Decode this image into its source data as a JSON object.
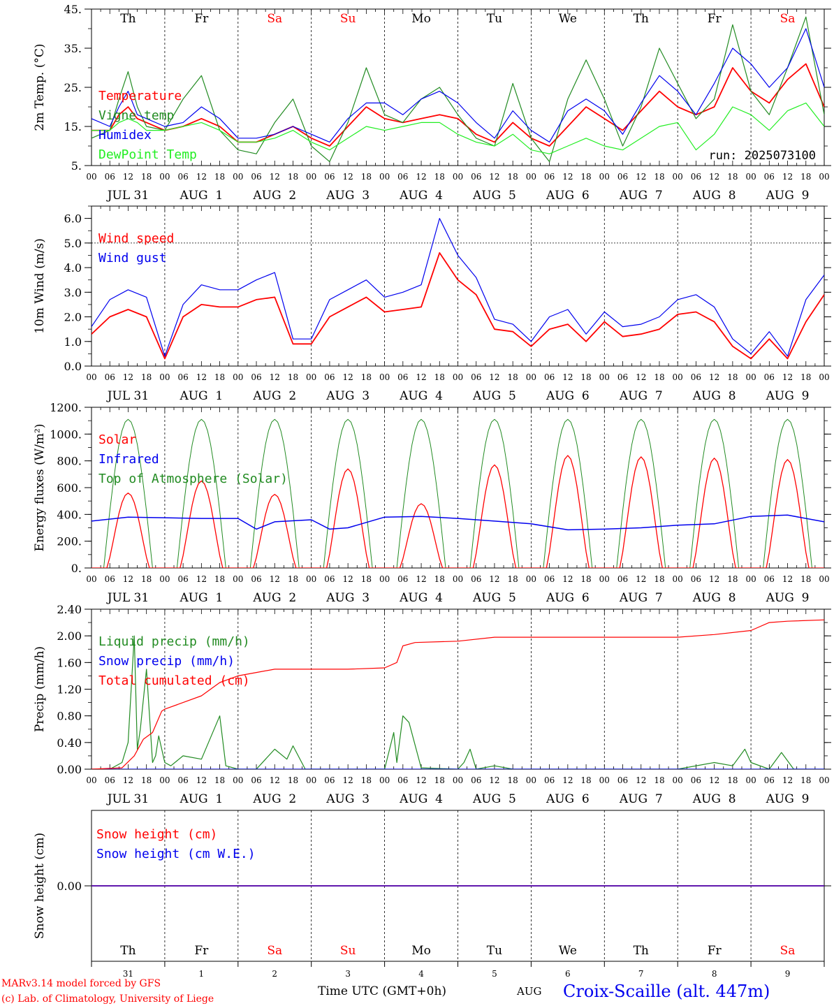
{
  "colors": {
    "red": "#ff0000",
    "green": "#228b22",
    "blue": "#0000ee",
    "lightgreen": "#22ee22",
    "black": "#000000"
  },
  "run_label": "run: 2025073100",
  "day_names": [
    "Th",
    "Fr",
    "Sa",
    "Su",
    "Mo",
    "Tu",
    "We",
    "Th",
    "Fr",
    "Sa"
  ],
  "weekend_days": [
    2,
    3,
    9
  ],
  "day_dates": [
    "JUL 31",
    "AUG  1",
    "AUG  2",
    "AUG  3",
    "AUG  4",
    "AUG  5",
    "AUG  6",
    "AUG  7",
    "AUG  8",
    "AUG  9"
  ],
  "bottom_day_numbers": [
    "31",
    "1",
    "2",
    "3",
    "4",
    "5",
    "6",
    "7",
    "8",
    "9"
  ],
  "hour_ticks": [
    "00",
    "06",
    "12",
    "18"
  ],
  "footer": {
    "model": "MARv3.14 model forced by GFS",
    "lab": "(c) Lab. of Climatology, University of Liege",
    "time_label": "Time UTC (GMT+0h)",
    "month": "AUG",
    "station": "Croix-Scaille (alt. 447m)"
  },
  "chart_data": [
    {
      "type": "line",
      "ylabel": "2m Temp. (°C)",
      "ylim": [
        5,
        45
      ],
      "yticks": [
        "5.",
        "15.",
        "25.",
        "35.",
        "45."
      ],
      "ytick_values": [
        5,
        15,
        25,
        35,
        45
      ],
      "legend": [
        {
          "label": "Temperature",
          "color": "red"
        },
        {
          "label": "Vigne temp",
          "color": "green"
        },
        {
          "label": "Humidex",
          "color": "blue"
        },
        {
          "label": "DewPoint Temp",
          "color": "lightgreen"
        }
      ],
      "x_hours": [
        0,
        6,
        9,
        12,
        15,
        18,
        24,
        30,
        36,
        42,
        48,
        54,
        60,
        66,
        72,
        78,
        84,
        90,
        96,
        102,
        108,
        114,
        120,
        126,
        132,
        138,
        144,
        150,
        156,
        162,
        168,
        174,
        180,
        186,
        192,
        198,
        204,
        210,
        216,
        222,
        228,
        234,
        240
      ],
      "series": [
        {
          "name": "Temperature",
          "color": "red",
          "values": [
            14,
            14,
            18,
            20,
            17,
            16,
            14,
            15,
            17,
            15,
            11,
            11,
            13,
            15,
            12,
            10,
            15,
            20,
            17,
            16,
            17,
            18,
            17,
            13,
            11,
            16,
            12,
            10,
            15,
            20,
            17,
            14,
            19,
            24,
            20,
            18,
            20,
            30,
            24,
            21,
            27,
            31,
            20
          ]
        },
        {
          "name": "Vigne temp",
          "color": "green",
          "values": [
            12,
            14,
            22,
            29,
            20,
            15,
            14,
            22,
            28,
            14,
            9,
            8,
            16,
            22,
            10,
            6,
            16,
            30,
            18,
            16,
            22,
            25,
            18,
            12,
            10,
            26,
            12,
            6,
            22,
            32,
            22,
            10,
            20,
            35,
            26,
            17,
            22,
            41,
            24,
            18,
            30,
            43,
            18
          ]
        },
        {
          "name": "Humidex",
          "color": "blue",
          "values": [
            17,
            15,
            20,
            24,
            18,
            17,
            15,
            16,
            20,
            17,
            12,
            12,
            13,
            15,
            13,
            11,
            17,
            21,
            21,
            18,
            22,
            24,
            21,
            16,
            12,
            19,
            14,
            11,
            19,
            22,
            19,
            13,
            21,
            28,
            24,
            18,
            26,
            35,
            31,
            25,
            30,
            40,
            25
          ]
        },
        {
          "name": "DewPoint Temp",
          "color": "lightgreen",
          "values": [
            14,
            14,
            16,
            17,
            16,
            14,
            14,
            15,
            16,
            14,
            11,
            11,
            12,
            14,
            11,
            9,
            12,
            15,
            14,
            15,
            16,
            16,
            13,
            11,
            10,
            13,
            9,
            8,
            10,
            12,
            10,
            9,
            12,
            15,
            16,
            9,
            13,
            20,
            18,
            14,
            19,
            21,
            15
          ]
        }
      ]
    },
    {
      "type": "line",
      "ylabel": "10m Wind (m/s)",
      "ylim": [
        0,
        6.5
      ],
      "yticks": [
        "0.0",
        "1.0",
        "2.0",
        "3.0",
        "4.0",
        "5.0",
        "6.0"
      ],
      "ytick_values": [
        0,
        1,
        2,
        3,
        4,
        5,
        6
      ],
      "reference_line": 5.0,
      "legend": [
        {
          "label": "Wind speed",
          "color": "red"
        },
        {
          "label": "Wind gust",
          "color": "blue"
        }
      ],
      "x_hours": [
        0,
        6,
        12,
        18,
        24,
        30,
        36,
        42,
        48,
        54,
        60,
        66,
        72,
        78,
        84,
        90,
        96,
        102,
        108,
        114,
        120,
        126,
        132,
        138,
        144,
        150,
        156,
        162,
        168,
        174,
        180,
        186,
        192,
        198,
        204,
        210,
        216,
        222,
        228,
        234,
        240
      ],
      "series": [
        {
          "name": "Wind speed",
          "color": "red",
          "values": [
            1.3,
            2.0,
            2.3,
            2.0,
            0.3,
            2.0,
            2.5,
            2.4,
            2.4,
            2.7,
            2.8,
            0.9,
            0.9,
            2.0,
            2.4,
            2.8,
            2.2,
            2.3,
            2.4,
            4.6,
            3.5,
            2.9,
            1.5,
            1.4,
            0.8,
            1.5,
            1.7,
            1.0,
            1.8,
            1.2,
            1.3,
            1.5,
            2.1,
            2.2,
            1.8,
            0.8,
            0.3,
            1.1,
            0.3,
            1.8,
            2.9
          ]
        },
        {
          "name": "Wind gust",
          "color": "blue",
          "values": [
            1.6,
            2.7,
            3.1,
            2.8,
            0.4,
            2.5,
            3.3,
            3.1,
            3.1,
            3.5,
            3.8,
            1.1,
            1.1,
            2.7,
            3.1,
            3.5,
            2.8,
            3.0,
            3.3,
            6.0,
            4.5,
            3.6,
            1.9,
            1.7,
            1.0,
            2.0,
            2.3,
            1.3,
            2.2,
            1.6,
            1.7,
            2.0,
            2.7,
            2.9,
            2.4,
            1.1,
            0.5,
            1.4,
            0.4,
            2.7,
            3.7
          ]
        }
      ]
    },
    {
      "type": "line",
      "ylabel": "Energy fluxes (W/m²)",
      "ylim": [
        0,
        1200
      ],
      "yticks": [
        "0.",
        "200.",
        "400.",
        "600.",
        "800.",
        "1000.",
        "1200."
      ],
      "ytick_values": [
        0,
        200,
        400,
        600,
        800,
        1000,
        1200
      ],
      "legend": [
        {
          "label": "Solar",
          "color": "red"
        },
        {
          "label": "Infrared",
          "color": "blue"
        },
        {
          "label": "Top of Atmosphere (Solar)",
          "color": "green"
        }
      ],
      "toa_peak": 1110,
      "solar_peaks": [
        560,
        650,
        550,
        740,
        480,
        770,
        840,
        830,
        820,
        810
      ],
      "infrared": {
        "x_hours": [
          0,
          12,
          24,
          36,
          48,
          54,
          60,
          72,
          78,
          84,
          96,
          108,
          120,
          132,
          144,
          156,
          168,
          180,
          192,
          204,
          216,
          228,
          240
        ],
        "values": [
          350,
          380,
          375,
          370,
          370,
          290,
          345,
          360,
          290,
          300,
          380,
          385,
          370,
          350,
          330,
          285,
          290,
          300,
          320,
          330,
          385,
          395,
          345
        ]
      }
    },
    {
      "type": "line",
      "ylabel": "Precip (mm/h)",
      "ylim": [
        0,
        2.4
      ],
      "yticks": [
        "0.00",
        "0.40",
        "0.80",
        "1.20",
        "1.60",
        "2.00",
        "2.40"
      ],
      "ytick_values": [
        0,
        0.4,
        0.8,
        1.2,
        1.6,
        2.0,
        2.4
      ],
      "legend": [
        {
          "label": "Liquid precip (mm/h)",
          "color": "green"
        },
        {
          "label": "Snow precip (mm/h)",
          "color": "blue"
        },
        {
          "label": "Total cumulated (cm)",
          "color": "red"
        }
      ],
      "series": [
        {
          "name": "Liquid precip (mm/h)",
          "color": "green",
          "x_hours": [
            0,
            6,
            10,
            12,
            14,
            15,
            16,
            18,
            20,
            21,
            22,
            24,
            26,
            30,
            36,
            42,
            44,
            48,
            54,
            60,
            64,
            66,
            70,
            72,
            76,
            80,
            84,
            90,
            96,
            99,
            100,
            102,
            104,
            108,
            120,
            122,
            124,
            126,
            132,
            138,
            144,
            162,
            192,
            204,
            210,
            214,
            216,
            222,
            226,
            230,
            234,
            240
          ],
          "values": [
            0,
            0,
            0.1,
            0.4,
            2.0,
            0.3,
            0.6,
            1.5,
            0.1,
            0.2,
            0.5,
            0.1,
            0.05,
            0.2,
            0.15,
            0.8,
            0.05,
            0,
            0,
            0.3,
            0.15,
            0.35,
            0,
            0,
            0,
            0,
            0,
            0,
            0,
            0.55,
            0.1,
            0.8,
            0.7,
            0.02,
            0,
            0.1,
            0.3,
            0,
            0.05,
            0,
            0,
            0,
            0,
            0.1,
            0.05,
            0.3,
            0.1,
            0,
            0.25,
            0,
            0,
            0
          ]
        },
        {
          "name": "Snow precip (mm/h)",
          "color": "blue",
          "x_hours": [
            0,
            240
          ],
          "values": [
            0,
            0
          ]
        },
        {
          "name": "Total cumulated (cm)",
          "color": "red",
          "x_hours": [
            0,
            10,
            14,
            17,
            20,
            23,
            24,
            30,
            36,
            42,
            45,
            48,
            54,
            60,
            66,
            72,
            78,
            84,
            96,
            100,
            102,
            106,
            120,
            132,
            144,
            168,
            192,
            204,
            216,
            222,
            228,
            240
          ],
          "values": [
            0,
            0.02,
            0.2,
            0.45,
            0.55,
            0.87,
            0.9,
            1.0,
            1.1,
            1.3,
            1.35,
            1.4,
            1.45,
            1.5,
            1.5,
            1.5,
            1.5,
            1.5,
            1.52,
            1.6,
            1.85,
            1.9,
            1.92,
            1.98,
            1.98,
            1.98,
            1.98,
            2.02,
            2.08,
            2.2,
            2.22,
            2.24
          ]
        }
      ]
    },
    {
      "type": "line",
      "ylabel": "Snow height (cm)",
      "ylim": [
        -1,
        1
      ],
      "yticks": [
        "0.00"
      ],
      "ytick_values": [
        0
      ],
      "legend": [
        {
          "label": "Snow height (cm)",
          "color": "red"
        },
        {
          "label": "Snow height (cm W.E.)",
          "color": "blue"
        }
      ],
      "series": [
        {
          "name": "Snow height (cm)",
          "color": "red",
          "x_hours": [
            0,
            240
          ],
          "values": [
            0,
            0
          ]
        },
        {
          "name": "Snow height (cm W.E.)",
          "color": "blue",
          "x_hours": [
            0,
            240
          ],
          "values": [
            0,
            0
          ]
        }
      ]
    }
  ]
}
